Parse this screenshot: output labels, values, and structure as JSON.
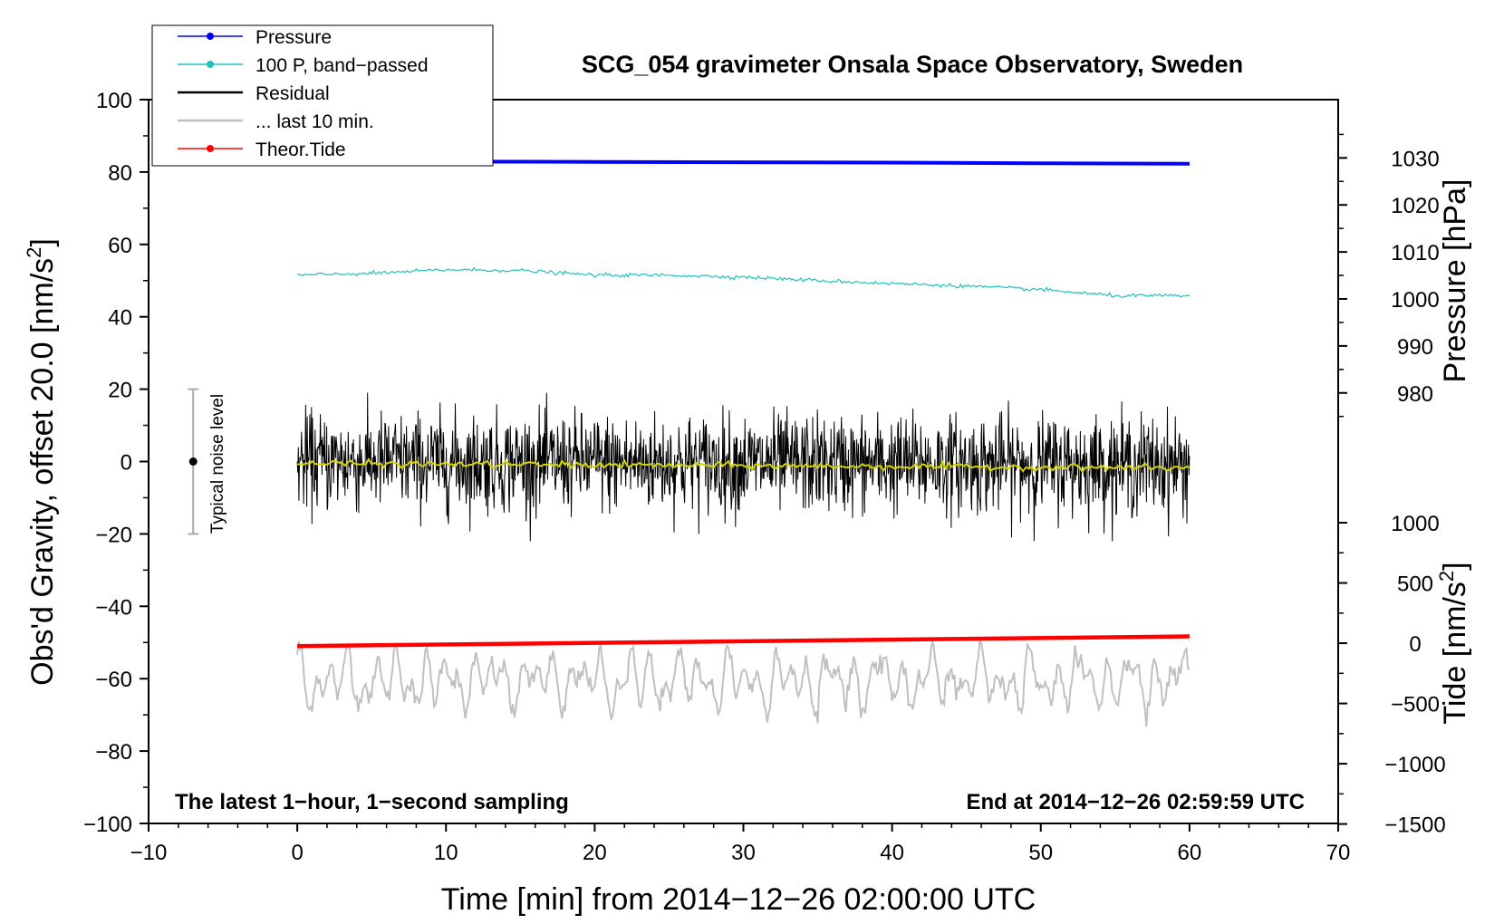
{
  "chart_data": {
    "type": "line",
    "title": "SCG_054 gravimeter Onsala Space Observatory, Sweden",
    "xlabel": "Time [min] from 2014−12−26 02:00:00 UTC",
    "ylabel_left_main": "Obs'd Gravity, offset 20.0 [nm/s",
    "ylabel_left_sup": "2",
    "ylabel_left_close": "]",
    "ylabel_right_pressure": "Pressure [hPa]",
    "ylabel_right_tide_main": "Tide [nm/s",
    "ylabel_right_tide_sup": "2",
    "ylabel_right_tide_close": "]",
    "xlim": [
      -10,
      70
    ],
    "ylim": [
      -100,
      100
    ],
    "x_ticks": [
      "−10",
      "0",
      "10",
      "20",
      "30",
      "40",
      "50",
      "60",
      "70"
    ],
    "x_tick_values": [
      -10,
      0,
      10,
      20,
      30,
      40,
      50,
      60,
      70
    ],
    "y_ticks": [
      "−100",
      "−80",
      "−60",
      "−40",
      "−20",
      "0",
      "20",
      "40",
      "60",
      "80",
      "100"
    ],
    "y_tick_values": [
      -100,
      -80,
      -60,
      -40,
      -20,
      0,
      20,
      40,
      60,
      80,
      100
    ],
    "pressure_axis": {
      "ticks": [
        "980",
        "990",
        "1000",
        "1010",
        "1020",
        "1030"
      ],
      "tick_values": [
        980,
        990,
        1000,
        1010,
        1020,
        1030
      ],
      "value_at_y0": 965.4,
      "hpa_per_gravity_unit": 0.77
    },
    "tide_axis": {
      "ticks": [
        "−1500",
        "−1000",
        "−500",
        "0",
        "500",
        "1000"
      ],
      "tick_values": [
        -1500,
        -1000,
        -500,
        0,
        500,
        1000
      ],
      "gravity_at_0": -50.2,
      "gravity_per_nms2": 0.0333
    },
    "legend": [
      {
        "label": "Pressure",
        "color": "#0000ff",
        "marker": true
      },
      {
        "label": "100 P, band−passed",
        "color": "#20c0c0",
        "marker": true
      },
      {
        "label": "Residual",
        "color": "#000000",
        "marker": false
      },
      {
        "label": "... last 10 min.",
        "color": "#c0c0c0",
        "marker": false
      },
      {
        "label": "Theor.Tide",
        "color": "#ff0000",
        "marker": true
      }
    ],
    "annotation_left": "The latest 1−hour, 1−second sampling",
    "annotation_right": "End at 2014−12−26 02:59:59 UTC",
    "noise_label": "Typical noise level",
    "noise_bar": {
      "x": -7,
      "center": 0,
      "low": -20,
      "high": 20
    },
    "series": [
      {
        "name": "Pressure",
        "color": "#0000ff",
        "x": [
          0,
          10,
          20,
          30,
          40,
          50,
          60
        ],
        "y": [
          82.9,
          82.9,
          82.8,
          82.7,
          82.6,
          82.4,
          82.3
        ]
      },
      {
        "name": "100 P, band−passed",
        "color": "#20c0c0",
        "x": [
          0,
          5,
          10,
          15,
          20,
          25,
          30,
          35,
          40,
          45,
          50,
          55,
          60
        ],
        "y": [
          51.5,
          52.0,
          53.0,
          52.8,
          51.5,
          51.5,
          51.0,
          50.0,
          49.2,
          48.5,
          47.5,
          45.8,
          45.8
        ]
      },
      {
        "name": "Theor.Tide",
        "color": "#ff0000",
        "x": [
          0,
          60
        ],
        "y": [
          -51.0,
          -48.3
        ]
      },
      {
        "name": "Residual",
        "color": "#000000",
        "x": [
          0,
          60
        ],
        "y_center": [
          0,
          -1
        ],
        "amplitude": 16,
        "min": -22,
        "max": 19
      },
      {
        "name": "Residual smoothed",
        "color": "#d4d400",
        "x": [
          0,
          60
        ],
        "y": [
          -0.5,
          -1.8
        ]
      },
      {
        "name": "... last 10 min.",
        "color": "#c0c0c0",
        "x": [
          0,
          60
        ],
        "y_center": -60.5,
        "amplitude": 8,
        "min": -82,
        "max": -45
      }
    ]
  }
}
